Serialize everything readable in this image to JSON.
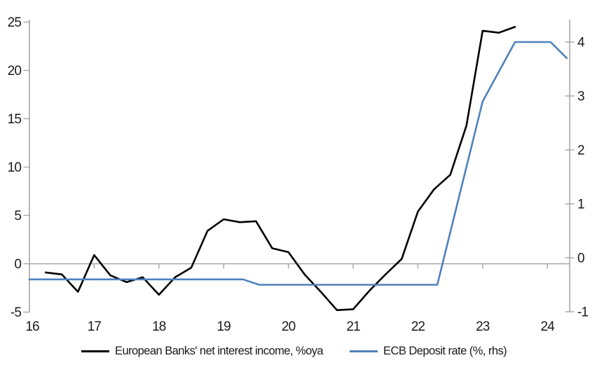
{
  "chart_data": {
    "type": "line",
    "title": "",
    "x_axis": {
      "tick_labels": [
        "16",
        "17",
        "18",
        "19",
        "20",
        "21",
        "22",
        "23",
        "24"
      ],
      "tick_values": [
        16,
        17,
        18,
        19,
        20,
        21,
        22,
        23,
        24
      ],
      "range": [
        16,
        24.34
      ]
    },
    "left_axis": {
      "tick_labels": [
        "25",
        "20",
        "15",
        "10",
        "5",
        "0",
        "-5"
      ],
      "tick_values": [
        25,
        20,
        15,
        10,
        5,
        0,
        -5
      ],
      "range": [
        -5.1,
        25.3
      ]
    },
    "right_axis": {
      "tick_labels": [
        "4",
        "3",
        "2",
        "1",
        "0",
        "-1"
      ],
      "tick_values": [
        4,
        3,
        2,
        1,
        0,
        -1
      ],
      "range": [
        -1.02,
        4.42
      ]
    },
    "grid": "zero-line-only",
    "legend_position": "bottom",
    "series": [
      {
        "name": "European Banks' net interest income, %oya",
        "axis": "left",
        "color": "#000000",
        "points": [
          [
            16.25,
            -0.9
          ],
          [
            16.5,
            -1.1
          ],
          [
            16.75,
            -2.9
          ],
          [
            17.0,
            0.9
          ],
          [
            17.25,
            -1.2
          ],
          [
            17.5,
            -1.9
          ],
          [
            17.75,
            -1.4
          ],
          [
            18.0,
            -3.2
          ],
          [
            18.25,
            -1.4
          ],
          [
            18.5,
            -0.4
          ],
          [
            18.75,
            3.4
          ],
          [
            19.0,
            4.6
          ],
          [
            19.25,
            4.3
          ],
          [
            19.5,
            4.4
          ],
          [
            19.75,
            1.6
          ],
          [
            20.0,
            1.2
          ],
          [
            20.25,
            -1.1
          ],
          [
            20.5,
            -2.9
          ],
          [
            20.75,
            -4.8
          ],
          [
            21.0,
            -4.7
          ],
          [
            21.25,
            -2.8
          ],
          [
            21.5,
            -1.1
          ],
          [
            21.75,
            0.5
          ],
          [
            22.0,
            5.4
          ],
          [
            22.25,
            7.7
          ],
          [
            22.5,
            9.2
          ],
          [
            22.75,
            14.3
          ],
          [
            23.0,
            24.1
          ],
          [
            23.25,
            23.9
          ],
          [
            23.5,
            24.5
          ]
        ]
      },
      {
        "name": "ECB Deposit rate (%, rhs)",
        "axis": "right",
        "color": "#4f81bd",
        "points": [
          [
            16.0,
            -0.4
          ],
          [
            19.3,
            -0.4
          ],
          [
            19.55,
            -0.5
          ],
          [
            22.3,
            -0.5
          ],
          [
            23.0,
            2.9
          ],
          [
            23.5,
            4.0
          ],
          [
            24.05,
            4.0
          ],
          [
            24.3,
            3.7
          ]
        ]
      }
    ],
    "colors": {
      "axis": "#a6a6a6",
      "tick": "#a6a6a6",
      "label": "#1a1a1a"
    }
  }
}
